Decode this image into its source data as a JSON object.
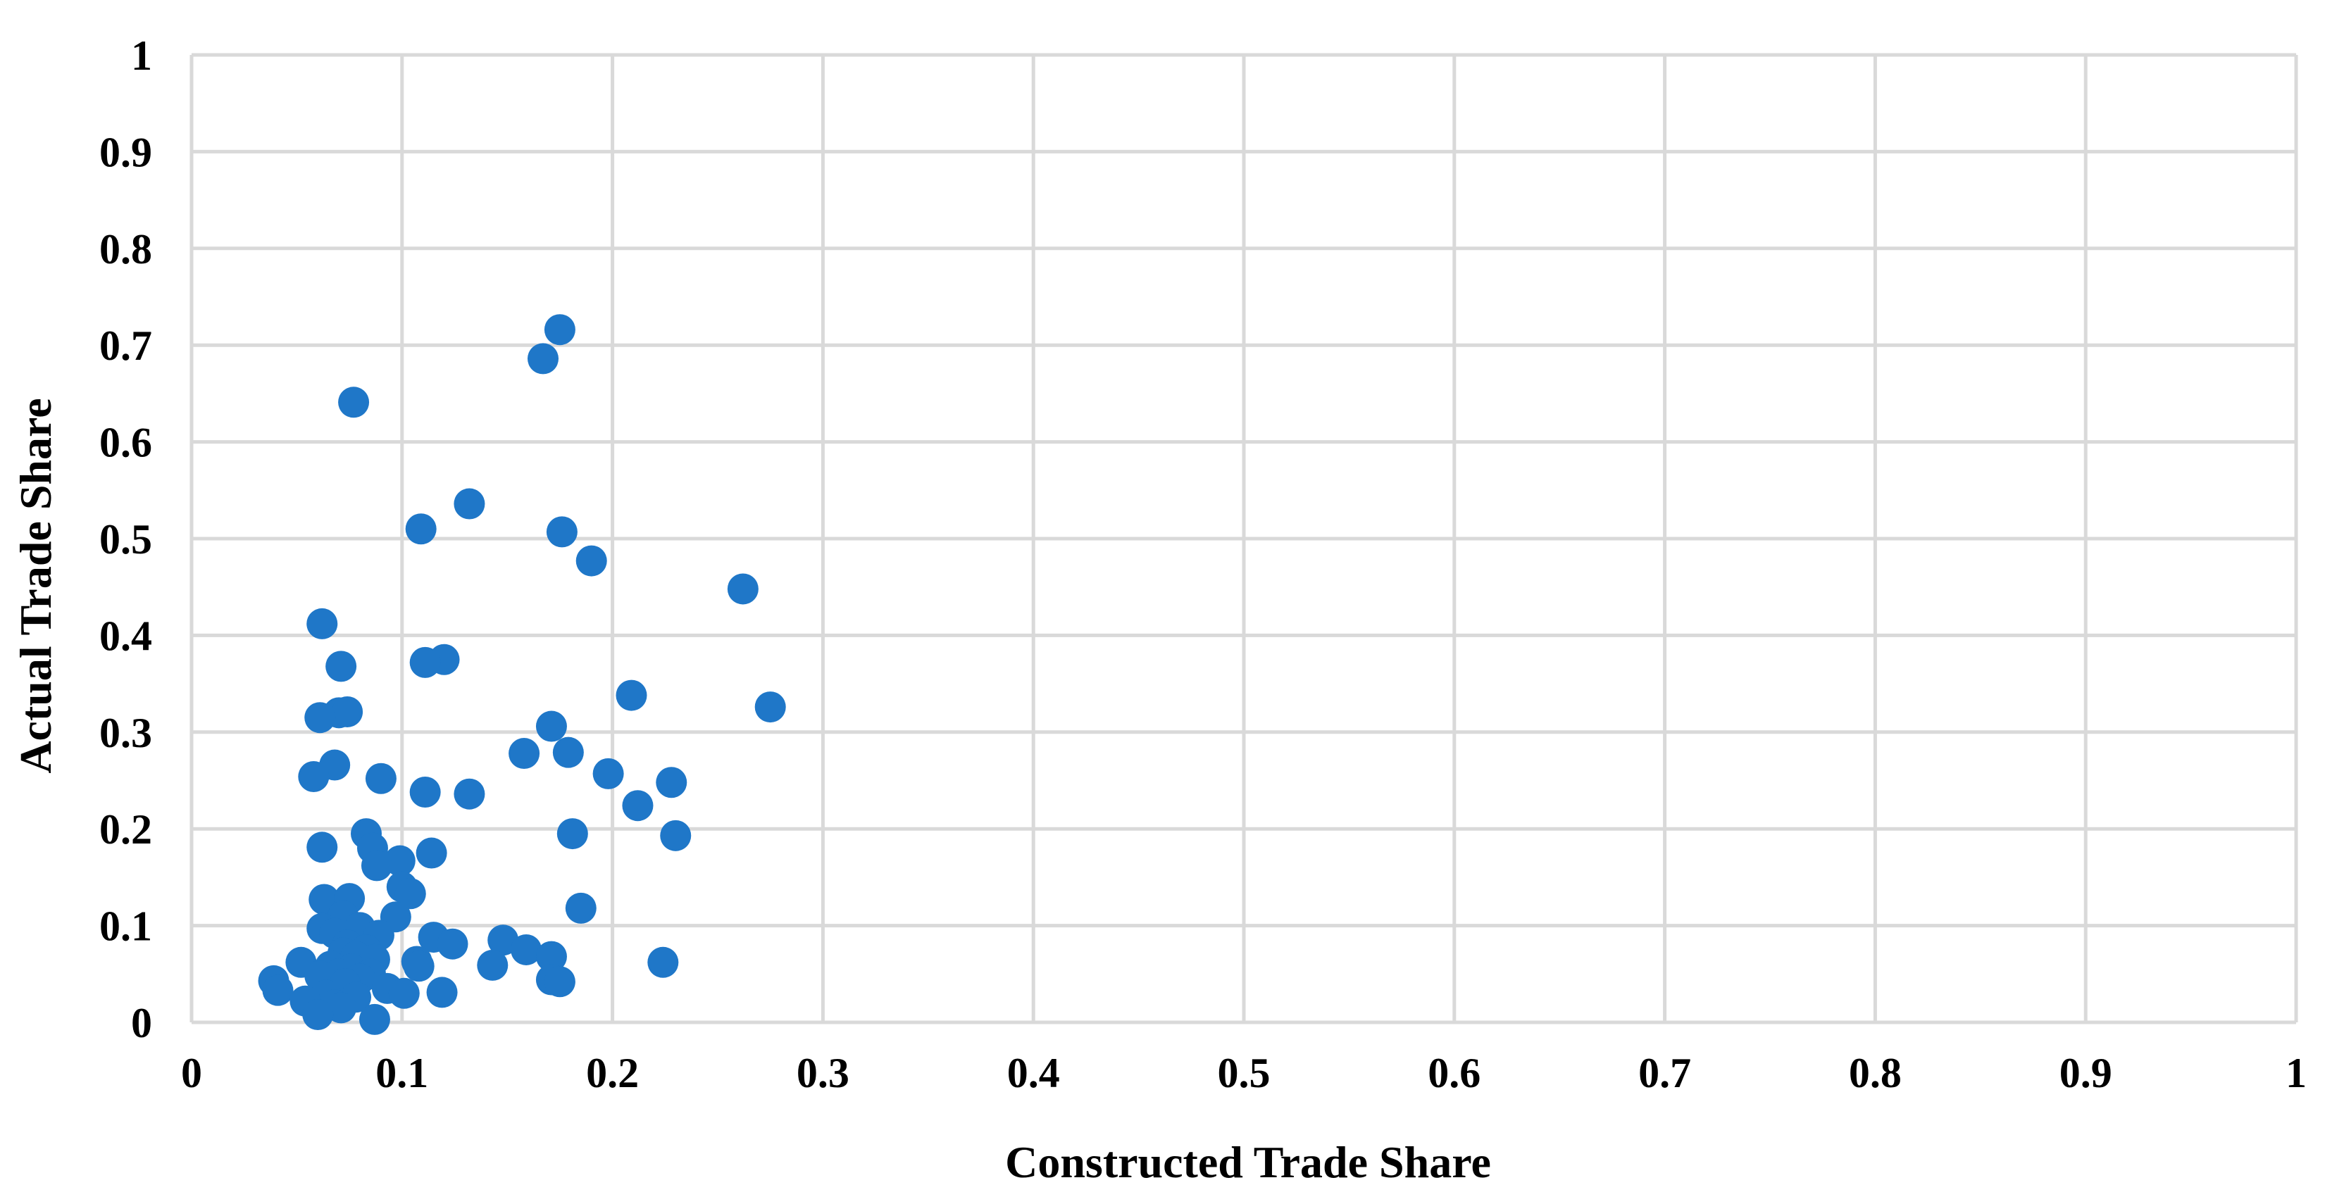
{
  "chart_data": {
    "type": "scatter",
    "title": "",
    "xlabel": "Constructed Trade Share",
    "ylabel": "Actual Trade Share",
    "xlim": [
      0,
      1
    ],
    "ylim": [
      0,
      1
    ],
    "x_ticks": [
      "0",
      "0.1",
      "0.2",
      "0.3",
      "0.4",
      "0.5",
      "0.6",
      "0.7",
      "0.8",
      "0.9",
      "1"
    ],
    "y_ticks": [
      "0",
      "0.1",
      "0.2",
      "0.3",
      "0.4",
      "0.5",
      "0.6",
      "0.7",
      "0.8",
      "0.9",
      "1"
    ],
    "grid": true,
    "legend": "none",
    "marker_color": "#1F77C8",
    "grid_color": "#D9D9D9",
    "series": [
      {
        "points": [
          [
            0.175,
            0.716
          ],
          [
            0.167,
            0.686
          ],
          [
            0.077,
            0.641
          ],
          [
            0.132,
            0.536
          ],
          [
            0.109,
            0.51
          ],
          [
            0.176,
            0.507
          ],
          [
            0.19,
            0.477
          ],
          [
            0.262,
            0.448
          ],
          [
            0.062,
            0.412
          ],
          [
            0.071,
            0.368
          ],
          [
            0.12,
            0.375
          ],
          [
            0.111,
            0.372
          ],
          [
            0.209,
            0.338
          ],
          [
            0.275,
            0.326
          ],
          [
            0.07,
            0.32
          ],
          [
            0.074,
            0.321
          ],
          [
            0.061,
            0.315
          ],
          [
            0.171,
            0.306
          ],
          [
            0.158,
            0.278
          ],
          [
            0.179,
            0.279
          ],
          [
            0.068,
            0.266
          ],
          [
            0.198,
            0.257
          ],
          [
            0.058,
            0.254
          ],
          [
            0.09,
            0.252
          ],
          [
            0.228,
            0.248
          ],
          [
            0.111,
            0.238
          ],
          [
            0.132,
            0.236
          ],
          [
            0.212,
            0.224
          ],
          [
            0.083,
            0.195
          ],
          [
            0.181,
            0.195
          ],
          [
            0.23,
            0.193
          ],
          [
            0.086,
            0.18
          ],
          [
            0.062,
            0.181
          ],
          [
            0.114,
            0.175
          ],
          [
            0.099,
            0.167
          ],
          [
            0.088,
            0.162
          ],
          [
            0.1,
            0.14
          ],
          [
            0.104,
            0.133
          ],
          [
            0.063,
            0.127
          ],
          [
            0.075,
            0.128
          ],
          [
            0.185,
            0.118
          ],
          [
            0.097,
            0.109
          ],
          [
            0.072,
            0.11
          ],
          [
            0.08,
            0.098
          ],
          [
            0.062,
            0.097
          ],
          [
            0.068,
            0.092
          ],
          [
            0.089,
            0.09
          ],
          [
            0.115,
            0.088
          ],
          [
            0.124,
            0.081
          ],
          [
            0.148,
            0.085
          ],
          [
            0.074,
            0.08
          ],
          [
            0.083,
            0.075
          ],
          [
            0.159,
            0.075
          ],
          [
            0.072,
            0.072
          ],
          [
            0.171,
            0.068
          ],
          [
            0.078,
            0.068
          ],
          [
            0.087,
            0.065
          ],
          [
            0.107,
            0.063
          ],
          [
            0.224,
            0.062
          ],
          [
            0.052,
            0.062
          ],
          [
            0.143,
            0.059
          ],
          [
            0.108,
            0.058
          ],
          [
            0.066,
            0.058
          ],
          [
            0.076,
            0.055
          ],
          [
            0.085,
            0.05
          ],
          [
            0.07,
            0.05
          ],
          [
            0.061,
            0.048
          ],
          [
            0.08,
            0.045
          ],
          [
            0.039,
            0.043
          ],
          [
            0.171,
            0.044
          ],
          [
            0.175,
            0.042
          ],
          [
            0.073,
            0.04
          ],
          [
            0.093,
            0.035
          ],
          [
            0.041,
            0.033
          ],
          [
            0.119,
            0.031
          ],
          [
            0.101,
            0.03
          ],
          [
            0.064,
            0.028
          ],
          [
            0.078,
            0.026
          ],
          [
            0.054,
            0.022
          ],
          [
            0.068,
            0.018
          ],
          [
            0.071,
            0.015
          ],
          [
            0.06,
            0.008
          ],
          [
            0.087,
            0.003
          ]
        ]
      }
    ]
  }
}
